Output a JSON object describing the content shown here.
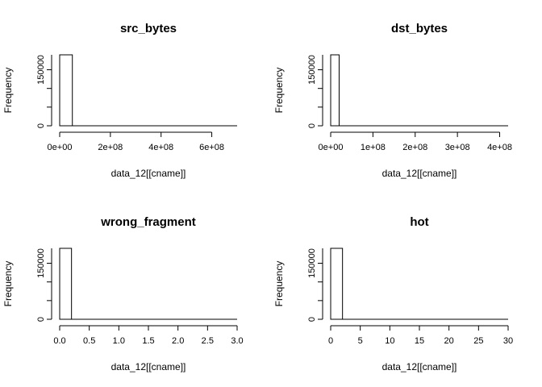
{
  "chart_data": [
    {
      "type": "bar",
      "title": "src_bytes",
      "xlabel": "data_12[[cname]]",
      "ylabel": "Frequency",
      "xlim": [
        0,
        700000000
      ],
      "ylim": [
        0,
        190000
      ],
      "xticks": [
        0,
        200000000,
        400000000,
        600000000
      ],
      "xtick_labels": [
        "0e+00",
        "2e+08",
        "4e+08",
        "6e+08"
      ],
      "yticks": [
        0,
        150000
      ],
      "ytick_labels": [
        "0",
        "150000"
      ],
      "bins": [
        {
          "x0": 0,
          "x1": 50000000,
          "count": 190000
        }
      ]
    },
    {
      "type": "bar",
      "title": "dst_bytes",
      "xlabel": "data_12[[cname]]",
      "ylabel": "Frequency",
      "xlim": [
        0,
        420000000
      ],
      "ylim": [
        0,
        190000
      ],
      "xticks": [
        0,
        100000000,
        200000000,
        300000000,
        400000000
      ],
      "xtick_labels": [
        "0e+00",
        "1e+08",
        "2e+08",
        "3e+08",
        "4e+08"
      ],
      "yticks": [
        0,
        150000
      ],
      "ytick_labels": [
        "0",
        "150000"
      ],
      "bins": [
        {
          "x0": 0,
          "x1": 20000000,
          "count": 190000
        }
      ]
    },
    {
      "type": "bar",
      "title": "wrong_fragment",
      "xlabel": "data_12[[cname]]",
      "ylabel": "Frequency",
      "xlim": [
        0,
        3
      ],
      "ylim": [
        0,
        190000
      ],
      "xticks": [
        0,
        0.5,
        1,
        1.5,
        2,
        2.5,
        3
      ],
      "xtick_labels": [
        "0.0",
        "0.5",
        "1.0",
        "1.5",
        "2.0",
        "2.5",
        "3.0"
      ],
      "yticks": [
        0,
        150000
      ],
      "ytick_labels": [
        "0",
        "150000"
      ],
      "bins": [
        {
          "x0": 0,
          "x1": 0.2,
          "count": 190000
        }
      ]
    },
    {
      "type": "bar",
      "title": "hot",
      "xlabel": "data_12[[cname]]",
      "ylabel": "Frequency",
      "xlim": [
        0,
        30
      ],
      "ylim": [
        0,
        190000
      ],
      "xticks": [
        0,
        5,
        10,
        15,
        20,
        25,
        30
      ],
      "xtick_labels": [
        "0",
        "5",
        "10",
        "15",
        "20",
        "25",
        "30"
      ],
      "yticks": [
        0,
        150000
      ],
      "ytick_labels": [
        "0",
        "150000"
      ],
      "bins": [
        {
          "x0": 0,
          "x1": 2,
          "count": 190000
        }
      ]
    }
  ]
}
